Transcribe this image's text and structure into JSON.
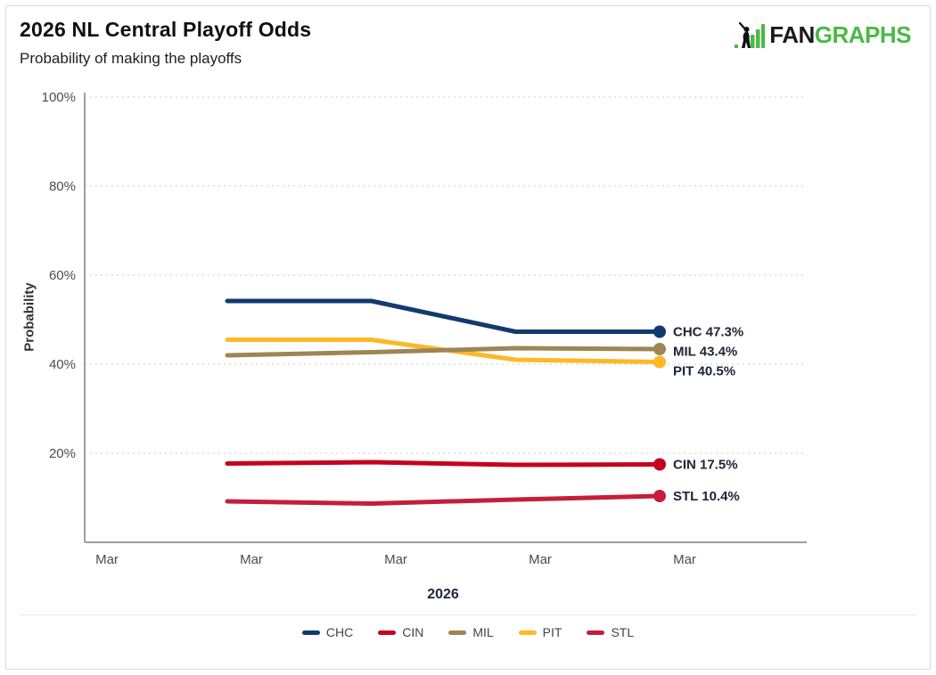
{
  "header": {
    "title": "2026 NL Central Playoff Odds",
    "subtitle": "Probability of making the playoffs"
  },
  "logo": {
    "fan": "FAN",
    "graphs": "GRAPHS",
    "green": "#4CB944",
    "black": "#1A1A1A"
  },
  "chart_data": {
    "type": "line",
    "title": "2026 NL Central Playoff Odds",
    "subtitle": "Probability of making the playoffs",
    "xlabel": "2026",
    "ylabel": "Probability",
    "x": [
      0,
      1,
      2,
      3
    ],
    "x_tick_labels": [
      "Mar",
      "Mar",
      "Mar",
      "Mar",
      "Mar"
    ],
    "y_ticks": [
      20,
      40,
      60,
      80,
      100
    ],
    "y_tick_labels": [
      "20%",
      "40%",
      "60%",
      "80%",
      "100%"
    ],
    "ylim": [
      0,
      100
    ],
    "grid": "horizontal dotted",
    "legend_position": "bottom",
    "series": [
      {
        "name": "CHC",
        "color": "#123A6F",
        "values": [
          54.2,
          54.2,
          47.3,
          47.3
        ],
        "final": 47.3,
        "end_label": "CHC 47.3%"
      },
      {
        "name": "CIN",
        "color": "#C6011F",
        "values": [
          17.7,
          18.0,
          17.4,
          17.5
        ],
        "final": 17.5,
        "end_label": "CIN 17.5%"
      },
      {
        "name": "MIL",
        "color": "#9E8555",
        "values": [
          42.0,
          42.7,
          43.6,
          43.4
        ],
        "final": 43.4,
        "end_label": "MIL 43.4%"
      },
      {
        "name": "PIT",
        "color": "#FDB827",
        "values": [
          45.5,
          45.5,
          41.0,
          40.5
        ],
        "final": 40.5,
        "end_label": "PIT 40.5%"
      },
      {
        "name": "STL",
        "color": "#C41E3A",
        "values": [
          9.2,
          8.7,
          9.6,
          10.4
        ],
        "final": 10.4,
        "end_label": "STL 10.4%"
      }
    ],
    "legend": [
      "CHC",
      "CIN",
      "MIL",
      "PIT",
      "STL"
    ],
    "colors": {
      "grid": "#DBDBDB",
      "axis": "#9E9E9E",
      "tick_text": "#4C4C4C",
      "end_label_text": "#1D2433",
      "axis_title": "#20263C"
    }
  }
}
